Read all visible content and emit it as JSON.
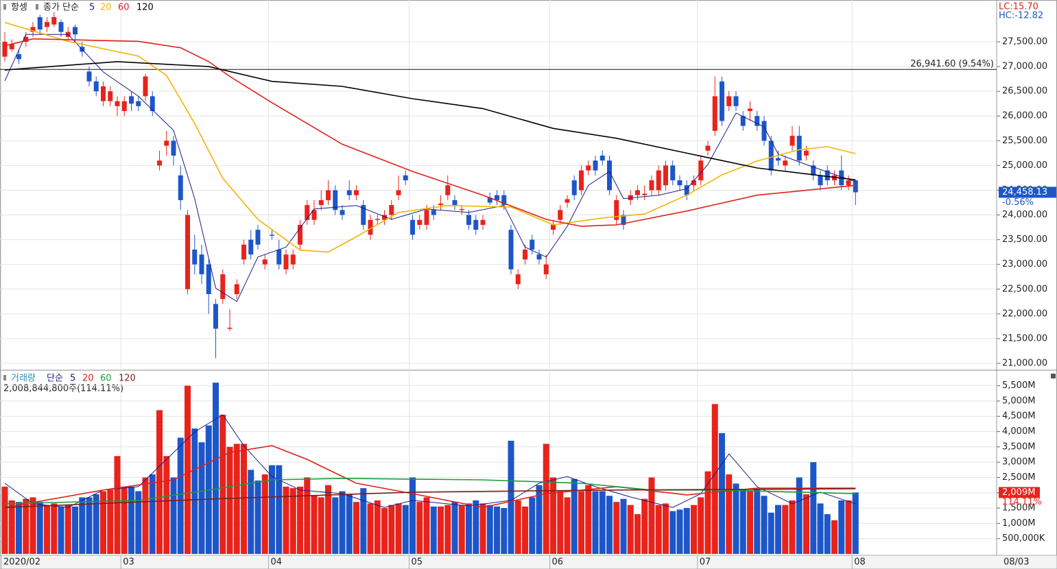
{
  "chart_data": [
    {
      "type": "candlestick",
      "title": "항셍",
      "indicator": "종가 단순",
      "lc": "LC:15.70",
      "hc": "HC:-12.82",
      "up_color": "#e8231c",
      "down_color": "#1d56c9",
      "open": [
        27200,
        27350,
        27250,
        27500,
        27700,
        28000,
        27800,
        27850,
        27900,
        27600,
        27800,
        27400,
        26900,
        26700,
        26300,
        26300,
        26200,
        26100,
        26400,
        26300,
        26400,
        26400,
        25000,
        25400,
        25500,
        24800,
        22500,
        23300,
        23200,
        23000,
        22200,
        22300,
        21700,
        22400,
        23100,
        23500,
        23700,
        23000,
        23600,
        23300,
        22900,
        23000,
        23400,
        23900,
        23900,
        24200,
        24300,
        24500,
        24100,
        24500,
        24400,
        24200,
        23600,
        23900,
        23900,
        24000,
        24400,
        24800,
        23900,
        23800,
        23800,
        24100,
        24200,
        24400,
        24300,
        24100,
        24000,
        23900,
        23800,
        24350,
        24400,
        24400,
        23700,
        22600,
        23100,
        23500,
        23200,
        22800,
        23700,
        23900,
        24250,
        24700,
        24500,
        24900,
        25100,
        25200,
        25100,
        23900,
        24000,
        24300,
        24400,
        24400,
        24500,
        24500,
        24600,
        25000,
        24700,
        24600,
        24600,
        24700,
        25300,
        25700,
        26700,
        26200,
        26400,
        26000,
        26100,
        26000,
        25900,
        25500,
        25150,
        25000,
        25400,
        25600,
        25200,
        25000,
        24800,
        24900,
        24700,
        24900,
        24600,
        24700
      ],
      "high": [
        27700,
        27550,
        27350,
        27700,
        27900,
        28050,
        28000,
        28100,
        27950,
        27800,
        27850,
        27500,
        27000,
        26800,
        26700,
        26600,
        26400,
        26400,
        26500,
        26400,
        26850,
        26500,
        25300,
        25700,
        25600,
        25000,
        24100,
        23600,
        23400,
        23100,
        22300,
        22900,
        22100,
        22700,
        23500,
        23700,
        23800,
        23200,
        23700,
        23500,
        23300,
        23300,
        23900,
        24300,
        24300,
        24500,
        24700,
        24600,
        24200,
        24700,
        24600,
        24300,
        24000,
        24000,
        24100,
        24300,
        24800,
        24900,
        24000,
        24000,
        24200,
        24200,
        24400,
        24800,
        24400,
        24200,
        24100,
        24000,
        24000,
        24450,
        24500,
        24500,
        23800,
        22900,
        23400,
        23600,
        23300,
        23200,
        23900,
        24200,
        24400,
        24800,
        25000,
        25100,
        25200,
        25300,
        25200,
        24400,
        24100,
        24500,
        24600,
        24600,
        24800,
        25000,
        25100,
        25100,
        24800,
        24700,
        24800,
        25200,
        25500,
        26800,
        26800,
        26500,
        26500,
        26100,
        26300,
        26100,
        26000,
        25600,
        25300,
        25200,
        25800,
        25800,
        25400,
        25100,
        24900,
        25000,
        24900,
        25200,
        24800,
        24700
      ],
      "low": [
        27100,
        27300,
        27050,
        27400,
        27600,
        27650,
        27700,
        27800,
        27600,
        27500,
        27500,
        27200,
        26600,
        26400,
        26200,
        26200,
        26000,
        26000,
        26100,
        26100,
        26300,
        26000,
        24900,
        25200,
        25000,
        24100,
        22400,
        22800,
        22600,
        22000,
        21100,
        22200,
        21650,
        22300,
        23000,
        23100,
        23300,
        22900,
        23500,
        22900,
        22800,
        22900,
        23300,
        23800,
        23800,
        24100,
        24200,
        24000,
        23900,
        24300,
        24300,
        23700,
        23500,
        23800,
        23800,
        23900,
        24300,
        24600,
        23500,
        23700,
        23700,
        23900,
        24100,
        24300,
        24100,
        24000,
        23700,
        23600,
        23700,
        24200,
        24200,
        24100,
        22800,
        22500,
        23000,
        23200,
        23000,
        22700,
        23600,
        23800,
        24150,
        24300,
        24400,
        24800,
        24800,
        25000,
        24400,
        23800,
        23700,
        24200,
        24300,
        24300,
        24400,
        24400,
        24500,
        24600,
        24500,
        24300,
        24500,
        24600,
        25200,
        25600,
        25800,
        26100,
        26100,
        25700,
        25900,
        25700,
        25400,
        24800,
        25000,
        24900,
        25300,
        25000,
        25100,
        24700,
        24500,
        24600,
        24600,
        24500,
        24500,
        24200
      ],
      "close": [
        27500,
        27450,
        27150,
        27600,
        27800,
        27750,
        27900,
        28000,
        27700,
        27700,
        27650,
        27300,
        26700,
        26500,
        26600,
        26500,
        26300,
        26300,
        26250,
        26200,
        26800,
        26100,
        25100,
        25500,
        25200,
        24300,
        24000,
        23000,
        22800,
        22400,
        21700,
        22800,
        21720,
        22600,
        23400,
        23200,
        23400,
        23100,
        23580,
        23000,
        23200,
        23200,
        23800,
        24200,
        24100,
        24300,
        24500,
        24100,
        24000,
        24400,
        24500,
        23800,
        23900,
        23920,
        24000,
        24200,
        24500,
        24700,
        23600,
        23900,
        24100,
        24000,
        24230,
        24600,
        24200,
        24120,
        23800,
        23700,
        23900,
        24250,
        24300,
        24200,
        22900,
        22800,
        23300,
        23300,
        23100,
        23000,
        23800,
        24100,
        24320,
        24400,
        24900,
        25000,
        24900,
        25100,
        24500,
        24300,
        23800,
        24400,
        24500,
        24430,
        24700,
        24900,
        25000,
        24700,
        24600,
        24400,
        24700,
        25100,
        25400,
        26400,
        25900,
        26400,
        26200,
        25800,
        26150,
        25800,
        25500,
        24900,
        25100,
        25100,
        25600,
        25100,
        25300,
        24800,
        24600,
        24700,
        24800,
        24600,
        24700,
        24458.13
      ],
      "ylim": [
        20917,
        28318
      ],
      "yticks": [
        {
          "value": 21000,
          "label": "21,000.00"
        },
        {
          "value": 21500,
          "label": "21,500.00"
        },
        {
          "value": 22000,
          "label": "22,000.00"
        },
        {
          "value": 22500,
          "label": "22,500.00"
        },
        {
          "value": 23000,
          "label": "23,000.00"
        },
        {
          "value": 23500,
          "label": "23,500.00"
        },
        {
          "value": 24000,
          "label": "24,000.00"
        },
        {
          "value": 24500,
          "label": "24,500.00"
        },
        {
          "value": 25000,
          "label": "25,000.00"
        },
        {
          "value": 25500,
          "label": "25,500.00"
        },
        {
          "value": 26000,
          "label": "26,000.00"
        },
        {
          "value": 26500,
          "label": "26,500.00"
        },
        {
          "value": 27000,
          "label": "27,000.00"
        },
        {
          "value": 27500,
          "label": "27,500.00"
        }
      ],
      "reference_line": {
        "value": 26941.6,
        "label": "26,941.60 (9.54%)"
      },
      "last_price": {
        "value": 24458.13,
        "label": "24,458.13",
        "change": "-0.56%"
      },
      "series": [
        {
          "name": "5",
          "color": "#1a1a8c",
          "x": [
            0,
            3,
            9,
            14,
            19,
            24,
            27,
            30,
            33,
            36,
            40,
            44,
            50,
            55,
            60,
            66,
            71,
            74,
            77,
            80,
            83,
            86,
            88,
            93,
            97,
            100,
            104,
            108,
            110,
            114,
            121
          ],
          "values": [
            26710,
            27650,
            27650,
            26890,
            26400,
            25710,
            24330,
            22520,
            22250,
            23150,
            23350,
            24120,
            24190,
            23910,
            24120,
            24050,
            24190,
            23350,
            23150,
            23770,
            24600,
            24880,
            24330,
            24400,
            24530,
            25020,
            26060,
            25780,
            25230,
            25020,
            24670
          ]
        },
        {
          "name": "20",
          "color": "#f5b400",
          "x": [
            0,
            9,
            19,
            23,
            27,
            31,
            36,
            42,
            46,
            50,
            56,
            63,
            72,
            78,
            85,
            91,
            97,
            102,
            107,
            113,
            117,
            121
          ],
          "values": [
            27890,
            27510,
            27210,
            26820,
            25850,
            24740,
            23910,
            23290,
            23250,
            23560,
            24050,
            24190,
            24160,
            23800,
            23940,
            24020,
            24400,
            24810,
            25090,
            25320,
            25380,
            25240
          ]
        },
        {
          "name": "60",
          "color": "#e0201b",
          "x": [
            0,
            4,
            19,
            25,
            29,
            32,
            38,
            48,
            58,
            68,
            77,
            82,
            87,
            97,
            107,
            121
          ],
          "values": [
            27420,
            27560,
            27510,
            27380,
            27100,
            26800,
            26270,
            25430,
            24880,
            24400,
            23910,
            23770,
            23800,
            24080,
            24400,
            24600
          ]
        },
        {
          "name": "120",
          "color": "#000000",
          "x": [
            0,
            16,
            29,
            38,
            48,
            58,
            68,
            78,
            87,
            97,
            107,
            121
          ],
          "values": [
            26930,
            27100,
            27000,
            26700,
            26600,
            26350,
            26150,
            25750,
            25550,
            25250,
            24950,
            24710
          ]
        }
      ]
    },
    {
      "type": "bar",
      "title": "거래량",
      "indicator": "단순",
      "summary": "2,008,844,800주(114.11%)",
      "end_label": "08/03",
      "categories": [
        "2020/02",
        null,
        null,
        null,
        null,
        null,
        null,
        null,
        null,
        null,
        null,
        null,
        null,
        null,
        null,
        null,
        null,
        "03",
        null,
        null,
        null,
        null,
        null,
        null,
        null,
        null,
        null,
        null,
        null,
        null,
        null,
        null,
        null,
        null,
        null,
        null,
        null,
        null,
        "04",
        null,
        null,
        null,
        null,
        null,
        null,
        null,
        null,
        null,
        null,
        null,
        null,
        null,
        null,
        null,
        null,
        null,
        null,
        null,
        "05",
        null,
        null,
        null,
        null,
        null,
        null,
        null,
        null,
        null,
        null,
        null,
        null,
        null,
        null,
        null,
        null,
        null,
        null,
        null,
        "06",
        null,
        null,
        null,
        null,
        null,
        null,
        null,
        null,
        null,
        null,
        null,
        null,
        null,
        null,
        null,
        null,
        null,
        null,
        null,
        null,
        "07",
        null,
        null,
        null,
        null,
        null,
        null,
        null,
        null,
        null,
        null,
        null,
        null,
        null,
        null,
        null,
        null,
        null,
        null,
        null,
        null,
        null,
        "08"
      ],
      "values": [
        2200,
        1750,
        1700,
        1800,
        1850,
        1700,
        1600,
        1650,
        1550,
        1600,
        1550,
        1850,
        1850,
        1950,
        2050,
        2100,
        3200,
        2200,
        2200,
        2050,
        2500,
        2600,
        4700,
        3200,
        2500,
        3800,
        5500,
        4100,
        3650,
        4200,
        5600,
        4550,
        3500,
        3600,
        3600,
        2750,
        2400,
        2600,
        2900,
        2900,
        2200,
        2150,
        2200,
        2500,
        1900,
        1850,
        2250,
        1850,
        2050,
        1950,
        1700,
        2150,
        1650,
        1750,
        1500,
        1600,
        1650,
        1600,
        2500,
        1700,
        1850,
        1550,
        1550,
        1600,
        1700,
        1600,
        1650,
        1750,
        1650,
        1600,
        1550,
        1500,
        3700,
        1750,
        1550,
        1850,
        2250,
        3600,
        2500,
        2050,
        1850,
        2450,
        2050,
        2250,
        2050,
        2050,
        1900,
        1700,
        1800,
        1600,
        1300,
        1800,
        2500,
        1600,
        1650,
        1400,
        1450,
        1500,
        1600,
        1850,
        2700,
        4900,
        3950,
        2600,
        2300,
        2100,
        2050,
        2100,
        1900,
        1350,
        1600,
        1600,
        1750,
        2500,
        1950,
        3000,
        1650,
        1300,
        1100,
        1750,
        1750,
        2008.8448
      ],
      "ylim": [
        0,
        5940
      ],
      "yticks": [
        {
          "value": 500,
          "label": "500,000K"
        },
        {
          "value": 1000,
          "label": "1,000M"
        },
        {
          "value": 1500,
          "label": "1,500M"
        },
        {
          "value": 2000,
          "label": "2,000M"
        },
        {
          "value": 2500,
          "label": "2,500M"
        },
        {
          "value": 3000,
          "label": "3,000M"
        },
        {
          "value": 3500,
          "label": "3,500M"
        },
        {
          "value": 4000,
          "label": "4,000M"
        },
        {
          "value": 4500,
          "label": "4,500M"
        },
        {
          "value": 5000,
          "label": "5,000M"
        },
        {
          "value": 5500,
          "label": "5,500M"
        }
      ],
      "last_label": {
        "value": 2008.8448,
        "label": "2,009M",
        "ratio": "114.11%"
      },
      "series": [
        {
          "name": "5",
          "color": "#1a1a8c",
          "x": [
            0,
            4,
            9,
            14,
            19,
            23,
            27,
            31,
            34,
            38,
            42,
            48,
            54,
            58,
            66,
            72,
            76,
            80,
            84,
            89,
            95,
            99,
            103,
            107,
            112,
            116,
            121
          ],
          "values": [
            2310,
            1640,
            1520,
            2090,
            2200,
            3090,
            3990,
            4550,
            3540,
            2530,
            2090,
            1970,
            1520,
            1750,
            1570,
            1750,
            2310,
            2530,
            2200,
            1860,
            1520,
            1970,
            3270,
            2200,
            1640,
            2020,
            1640
          ]
        },
        {
          "name": "20",
          "color": "#e0201b",
          "x": [
            0,
            14,
            24,
            32,
            38,
            43,
            50,
            58,
            68,
            77,
            87,
            97,
            107,
            121
          ],
          "values": [
            1520,
            2090,
            2420,
            3320,
            3540,
            3090,
            2310,
            1970,
            1520,
            1970,
            2200,
            1930,
            2150,
            2150
          ]
        },
        {
          "name": "60",
          "color": "#1e9a3a",
          "x": [
            0,
            19,
            29,
            38,
            48,
            68,
            82,
            92,
            102,
            121
          ],
          "values": [
            1640,
            1750,
            2090,
            2420,
            2470,
            2420,
            2310,
            2090,
            2090,
            1970
          ]
        },
        {
          "name": "120",
          "color": "#7a1f1f",
          "x": [
            0,
            29,
            58,
            87,
            121
          ],
          "values": [
            1520,
            1790,
            2020,
            2090,
            2130
          ]
        }
      ]
    }
  ]
}
